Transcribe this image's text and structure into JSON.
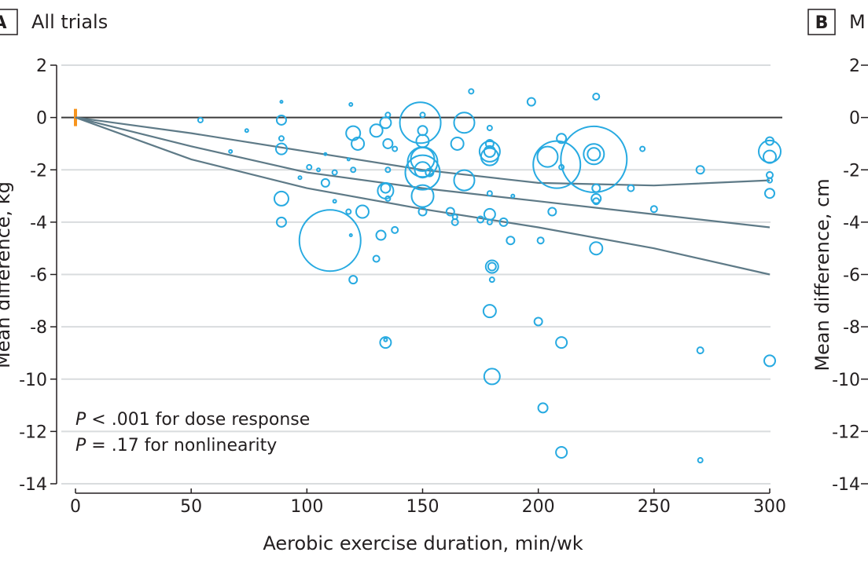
{
  "panel_a": {
    "letter": "A",
    "title": "All trials"
  },
  "panel_b": {
    "letter": "B",
    "title_fragment": "M",
    "ylabel": "Mean difference, cm",
    "yticks": [
      "2",
      "0",
      "-2",
      "-4",
      "-6",
      "-8",
      "-10",
      "-12",
      "-14"
    ]
  },
  "annotations": {
    "line1_p": "P",
    "line1_rest": " < .001 for dose response",
    "line2_p": "P",
    "line2_rest": " = .17 for nonlinearity"
  },
  "colors": {
    "points": "#27aae1",
    "curves": "#5e7a87",
    "grid": "#d9dcde",
    "zero_line": "#3b3b3b",
    "reference_tick": "#f7941d"
  },
  "chart_data": {
    "type": "scatter",
    "title": "All trials",
    "xlabel": "Aerobic exercise duration, min/wk",
    "ylabel": "Mean difference, kg",
    "xlim": [
      0,
      300
    ],
    "ylim": [
      -14,
      2
    ],
    "xticks": [
      0,
      50,
      100,
      150,
      200,
      250,
      300
    ],
    "yticks": [
      2,
      0,
      -2,
      -4,
      -6,
      -8,
      -10,
      -12,
      -14
    ],
    "grid": true,
    "point_size_meaning": "relative trial weight (marker radius)",
    "points": [
      {
        "x": 54,
        "y": -0.1,
        "r": 3
      },
      {
        "x": 67,
        "y": -1.3,
        "r": 2
      },
      {
        "x": 74,
        "y": -0.5,
        "r": 2
      },
      {
        "x": 89,
        "y": 0.6,
        "r": 1.5
      },
      {
        "x": 89,
        "y": -0.1,
        "r": 6
      },
      {
        "x": 89,
        "y": -0.8,
        "r": 3
      },
      {
        "x": 89,
        "y": -1.2,
        "r": 7
      },
      {
        "x": 89,
        "y": -3.1,
        "r": 9
      },
      {
        "x": 89,
        "y": -4,
        "r": 6
      },
      {
        "x": 97,
        "y": -2.3,
        "r": 2
      },
      {
        "x": 101,
        "y": -1.9,
        "r": 3
      },
      {
        "x": 105,
        "y": -2,
        "r": 2
      },
      {
        "x": 108,
        "y": -1.4,
        "r": 1.5
      },
      {
        "x": 108,
        "y": -2.5,
        "r": 5
      },
      {
        "x": 110,
        "y": -4.7,
        "r": 39
      },
      {
        "x": 112,
        "y": -2.1,
        "r": 3
      },
      {
        "x": 112,
        "y": -3.2,
        "r": 2
      },
      {
        "x": 118,
        "y": -1.6,
        "r": 1.5
      },
      {
        "x": 118,
        "y": -3.6,
        "r": 3
      },
      {
        "x": 119,
        "y": 0.5,
        "r": 2
      },
      {
        "x": 120,
        "y": -2,
        "r": 3
      },
      {
        "x": 119,
        "y": -4.5,
        "r": 1.5
      },
      {
        "x": 120,
        "y": -6.2,
        "r": 5
      },
      {
        "x": 120,
        "y": -0.6,
        "r": 9
      },
      {
        "x": 122,
        "y": -1,
        "r": 8
      },
      {
        "x": 124,
        "y": -3.6,
        "r": 8
      },
      {
        "x": 130,
        "y": -0.5,
        "r": 8
      },
      {
        "x": 130,
        "y": -5.4,
        "r": 4
      },
      {
        "x": 132,
        "y": -4.5,
        "r": 6
      },
      {
        "x": 134,
        "y": -0.2,
        "r": 7
      },
      {
        "x": 135,
        "y": 0.1,
        "r": 3
      },
      {
        "x": 135,
        "y": -1,
        "r": 6
      },
      {
        "x": 135,
        "y": -2,
        "r": 3
      },
      {
        "x": 134,
        "y": -2.8,
        "r": 10
      },
      {
        "x": 134,
        "y": -2.7,
        "r": 6
      },
      {
        "x": 135,
        "y": -3.1,
        "r": 3
      },
      {
        "x": 134,
        "y": -8.6,
        "r": 7
      },
      {
        "x": 134,
        "y": -8.5,
        "r": 2
      },
      {
        "x": 138,
        "y": -1.2,
        "r": 3
      },
      {
        "x": 138,
        "y": -4.3,
        "r": 4
      },
      {
        "x": 149,
        "y": -0.2,
        "r": 26
      },
      {
        "x": 150,
        "y": 0.1,
        "r": 3
      },
      {
        "x": 150,
        "y": -0.5,
        "r": 6
      },
      {
        "x": 150,
        "y": -0.9,
        "r": 8
      },
      {
        "x": 150,
        "y": -1.6,
        "r": 15
      },
      {
        "x": 150,
        "y": -1.7,
        "r": 19
      },
      {
        "x": 150,
        "y": -2,
        "r": 10
      },
      {
        "x": 150,
        "y": -3,
        "r": 14
      },
      {
        "x": 150,
        "y": -2.1,
        "r": 22
      },
      {
        "x": 150,
        "y": -3.6,
        "r": 5
      },
      {
        "x": 153,
        "y": -2.1,
        "r": 5
      },
      {
        "x": 162,
        "y": -3.6,
        "r": 5
      },
      {
        "x": 164,
        "y": -3.8,
        "r": 3
      },
      {
        "x": 164,
        "y": -4,
        "r": 4
      },
      {
        "x": 165,
        "y": -1,
        "r": 8
      },
      {
        "x": 168,
        "y": -0.2,
        "r": 13
      },
      {
        "x": 168,
        "y": -2.4,
        "r": 13
      },
      {
        "x": 171,
        "y": 1,
        "r": 3
      },
      {
        "x": 175,
        "y": -3.9,
        "r": 4
      },
      {
        "x": 179,
        "y": -0.4,
        "r": 3
      },
      {
        "x": 179,
        "y": -1,
        "r": 5
      },
      {
        "x": 179,
        "y": -1.3,
        "r": 13
      },
      {
        "x": 179,
        "y": -1.3,
        "r": 7
      },
      {
        "x": 179,
        "y": -1.5,
        "r": 11
      },
      {
        "x": 179,
        "y": -2.9,
        "r": 3
      },
      {
        "x": 179,
        "y": -3.7,
        "r": 7
      },
      {
        "x": 179,
        "y": -4,
        "r": 3
      },
      {
        "x": 180,
        "y": -5.7,
        "r": 8
      },
      {
        "x": 180,
        "y": -5.7,
        "r": 5
      },
      {
        "x": 180,
        "y": -6.2,
        "r": 3
      },
      {
        "x": 179,
        "y": -7.4,
        "r": 8
      },
      {
        "x": 180,
        "y": -9.9,
        "r": 10
      },
      {
        "x": 185,
        "y": -4,
        "r": 5
      },
      {
        "x": 188,
        "y": -4.7,
        "r": 5
      },
      {
        "x": 189,
        "y": -3,
        "r": 2
      },
      {
        "x": 197,
        "y": 0.6,
        "r": 5
      },
      {
        "x": 200,
        "y": -7.8,
        "r": 5
      },
      {
        "x": 201,
        "y": -4.7,
        "r": 4
      },
      {
        "x": 202,
        "y": -11.1,
        "r": 6
      },
      {
        "x": 204,
        "y": -1.5,
        "r": 13
      },
      {
        "x": 206,
        "y": -3.6,
        "r": 5
      },
      {
        "x": 208,
        "y": -1.8,
        "r": 30
      },
      {
        "x": 210,
        "y": -0.8,
        "r": 6
      },
      {
        "x": 210,
        "y": -1.9,
        "r": 3
      },
      {
        "x": 210,
        "y": -8.6,
        "r": 7
      },
      {
        "x": 210,
        "y": -12.8,
        "r": 7
      },
      {
        "x": 224,
        "y": -1.6,
        "r": 42
      },
      {
        "x": 224,
        "y": -1.4,
        "r": 13
      },
      {
        "x": 224,
        "y": -1.4,
        "r": 8
      },
      {
        "x": 225,
        "y": 0.8,
        "r": 4
      },
      {
        "x": 225,
        "y": -2.7,
        "r": 5
      },
      {
        "x": 225,
        "y": -3.1,
        "r": 6
      },
      {
        "x": 225,
        "y": -3.2,
        "r": 4
      },
      {
        "x": 225,
        "y": -5,
        "r": 8
      },
      {
        "x": 245,
        "y": -1.2,
        "r": 3
      },
      {
        "x": 240,
        "y": -2.7,
        "r": 4
      },
      {
        "x": 250,
        "y": -3.5,
        "r": 4
      },
      {
        "x": 270,
        "y": -2,
        "r": 5
      },
      {
        "x": 270,
        "y": -8.9,
        "r": 4
      },
      {
        "x": 270,
        "y": -13.1,
        "r": 3
      },
      {
        "x": 300,
        "y": -1.3,
        "r": 14
      },
      {
        "x": 300,
        "y": -0.9,
        "r": 5
      },
      {
        "x": 300,
        "y": -1.5,
        "r": 8
      },
      {
        "x": 300,
        "y": -2.2,
        "r": 4
      },
      {
        "x": 300,
        "y": -2.4,
        "r": 3
      },
      {
        "x": 300,
        "y": -2.9,
        "r": 6
      },
      {
        "x": 300,
        "y": -9.3,
        "r": 7
      }
    ],
    "curves": [
      {
        "role": "upper confidence limit",
        "x": [
          0,
          50,
          100,
          150,
          200,
          250,
          300
        ],
        "y": [
          0,
          -0.6,
          -1.3,
          -2,
          -2.5,
          -2.6,
          -2.4
        ]
      },
      {
        "role": "estimate",
        "x": [
          0,
          50,
          100,
          150,
          200,
          250,
          300
        ],
        "y": [
          0,
          -1.1,
          -2.1,
          -2.7,
          -3.2,
          -3.7,
          -4.2
        ]
      },
      {
        "role": "lower confidence limit",
        "x": [
          0,
          50,
          100,
          150,
          200,
          250,
          300
        ],
        "y": [
          0,
          -1.6,
          -2.7,
          -3.5,
          -4.2,
          -5.0,
          -6.0
        ]
      }
    ]
  }
}
